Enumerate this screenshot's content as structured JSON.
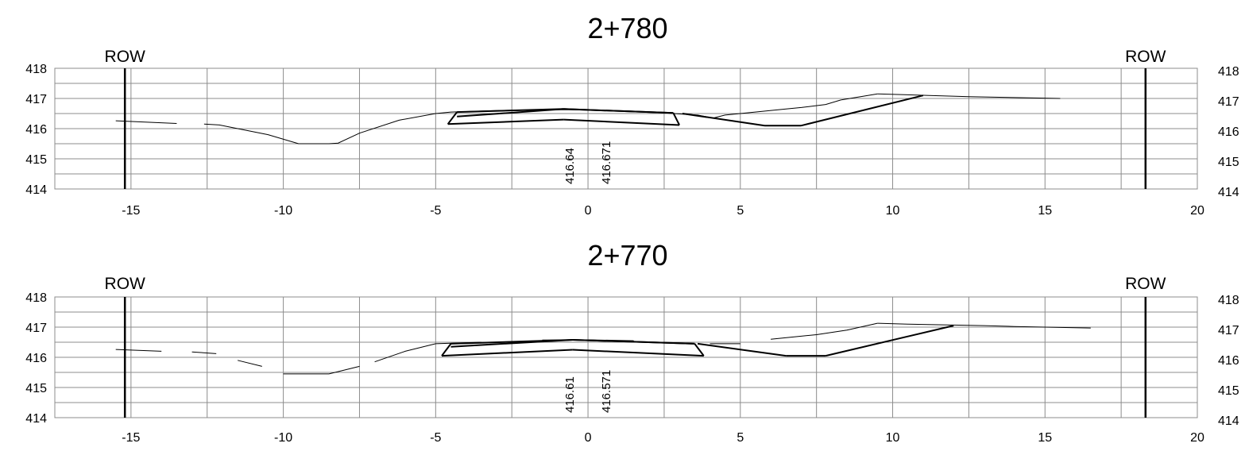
{
  "chart_data": [
    {
      "type": "line",
      "title": "2+780",
      "xlim": [
        -17.5,
        20
      ],
      "ylim": [
        414,
        418
      ],
      "x_ticks": [
        "-15",
        "-10",
        "-5",
        "0",
        "5",
        "10",
        "15",
        "20"
      ],
      "y_ticks": [
        "414",
        "415",
        "416",
        "417",
        "418"
      ],
      "grid": true,
      "row": {
        "label": "ROW",
        "left_x": -15.2,
        "right_x": 18.3
      },
      "annotations": [
        {
          "text": "416.64",
          "x": -0.6
        },
        {
          "text": "416.671",
          "x": 0.6
        }
      ],
      "series": [
        {
          "style": "existing-ground",
          "x": [
            -15.5,
            -13.5,
            -12.6,
            -12.1,
            -10.5,
            -9.5,
            -8.5,
            -8.2,
            -7.5,
            -6.2,
            -5.0,
            -4.5,
            -3.0,
            -1.5,
            -0.5,
            1.5,
            2.8,
            3.6,
            4.1,
            4.5,
            5.0,
            6.5,
            7.0,
            7.8,
            8.3,
            9.5,
            10.5,
            11.2,
            12.5,
            13.5,
            14.5,
            15.5
          ],
          "y": [
            416.26,
            416.17,
            416.15,
            416.12,
            415.8,
            415.5,
            415.5,
            415.52,
            415.85,
            416.28,
            416.5,
            416.55,
            416.6,
            416.62,
            416.63,
            416.58,
            416.5,
            416.45,
            416.35,
            416.45,
            416.5,
            416.65,
            416.7,
            416.8,
            416.95,
            417.15,
            417.12,
            417.1,
            417.06,
            417.04,
            417.02,
            417.0
          ],
          "dashes": [
            [
              0,
              1
            ],
            [
              2,
              24
            ],
            [
              24,
              25
            ],
            [
              25,
              31
            ]
          ]
        },
        {
          "style": "design-section",
          "x": [
            -4.6,
            -4.3,
            -0.8,
            2.8,
            3.0,
            -0.8,
            -4.3,
            -4.6,
            3.1,
            5.8,
            7.0,
            11.0
          ],
          "y": [
            416.15,
            416.55,
            416.65,
            416.52,
            416.12,
            416.3,
            416.4,
            416.15,
            416.5,
            416.1,
            416.1,
            417.1
          ],
          "segments": [
            [
              0,
              1
            ],
            [
              1,
              2
            ],
            [
              2,
              3
            ],
            [
              3,
              4
            ],
            [
              4,
              5
            ],
            [
              5,
              0
            ],
            [
              6,
              2
            ],
            [
              2,
              3
            ],
            [
              8,
              9
            ],
            [
              9,
              10
            ],
            [
              10,
              11
            ]
          ]
        }
      ]
    },
    {
      "type": "line",
      "title": "2+770",
      "xlim": [
        -17.5,
        20
      ],
      "ylim": [
        414,
        418
      ],
      "x_ticks": [
        "-15",
        "-10",
        "-5",
        "0",
        "5",
        "10",
        "15",
        "20"
      ],
      "y_ticks": [
        "414",
        "415",
        "416",
        "417",
        "418"
      ],
      "grid": true,
      "row": {
        "label": "ROW",
        "left_x": -15.2,
        "right_x": 18.3
      },
      "annotations": [
        {
          "text": "416.61",
          "x": -0.6
        },
        {
          "text": "416.571",
          "x": 0.6
        }
      ],
      "series": [
        {
          "style": "existing-ground",
          "x": [
            -15.5,
            -14.0,
            -13.0,
            -12.2,
            -11.5,
            -10.7,
            -10.0,
            -8.5,
            -7.5,
            -7.0,
            -6.0,
            -5.0,
            -3.5,
            -1.5,
            0.0,
            1.5,
            3.0,
            4.0,
            5.0,
            6.0,
            7.5,
            8.5,
            9.5,
            10.5,
            12.5,
            13.0,
            14.0,
            15.0,
            16.5
          ],
          "y": [
            416.26,
            416.2,
            416.18,
            416.12,
            415.9,
            415.7,
            415.45,
            415.45,
            415.7,
            415.85,
            416.2,
            416.45,
            416.5,
            416.57,
            416.58,
            416.55,
            416.5,
            416.45,
            416.45,
            416.6,
            416.75,
            416.9,
            417.13,
            417.1,
            417.06,
            417.05,
            417.02,
            417.0,
            416.97
          ],
          "dashes": [
            [
              0,
              1
            ],
            [
              2,
              3
            ],
            [
              4,
              5
            ],
            [
              6,
              8
            ],
            [
              9,
              10
            ],
            [
              10,
              12
            ],
            [
              13,
              15
            ],
            [
              17,
              18
            ],
            [
              19,
              20
            ],
            [
              20,
              22
            ],
            [
              22,
              24
            ],
            [
              24,
              28
            ]
          ]
        },
        {
          "style": "design-section",
          "x": [
            -4.8,
            -4.5,
            -0.5,
            3.5,
            3.8,
            -0.5,
            -4.5,
            -4.8,
            3.6,
            6.5,
            7.8,
            12.0
          ],
          "y": [
            416.05,
            416.45,
            416.58,
            416.45,
            416.05,
            416.25,
            416.35,
            416.05,
            416.45,
            416.05,
            416.05,
            417.05
          ],
          "segments": [
            [
              0,
              1
            ],
            [
              1,
              2
            ],
            [
              2,
              3
            ],
            [
              3,
              4
            ],
            [
              4,
              5
            ],
            [
              5,
              0
            ],
            [
              6,
              2
            ],
            [
              2,
              3
            ],
            [
              8,
              9
            ],
            [
              9,
              10
            ],
            [
              10,
              11
            ]
          ]
        }
      ]
    }
  ]
}
